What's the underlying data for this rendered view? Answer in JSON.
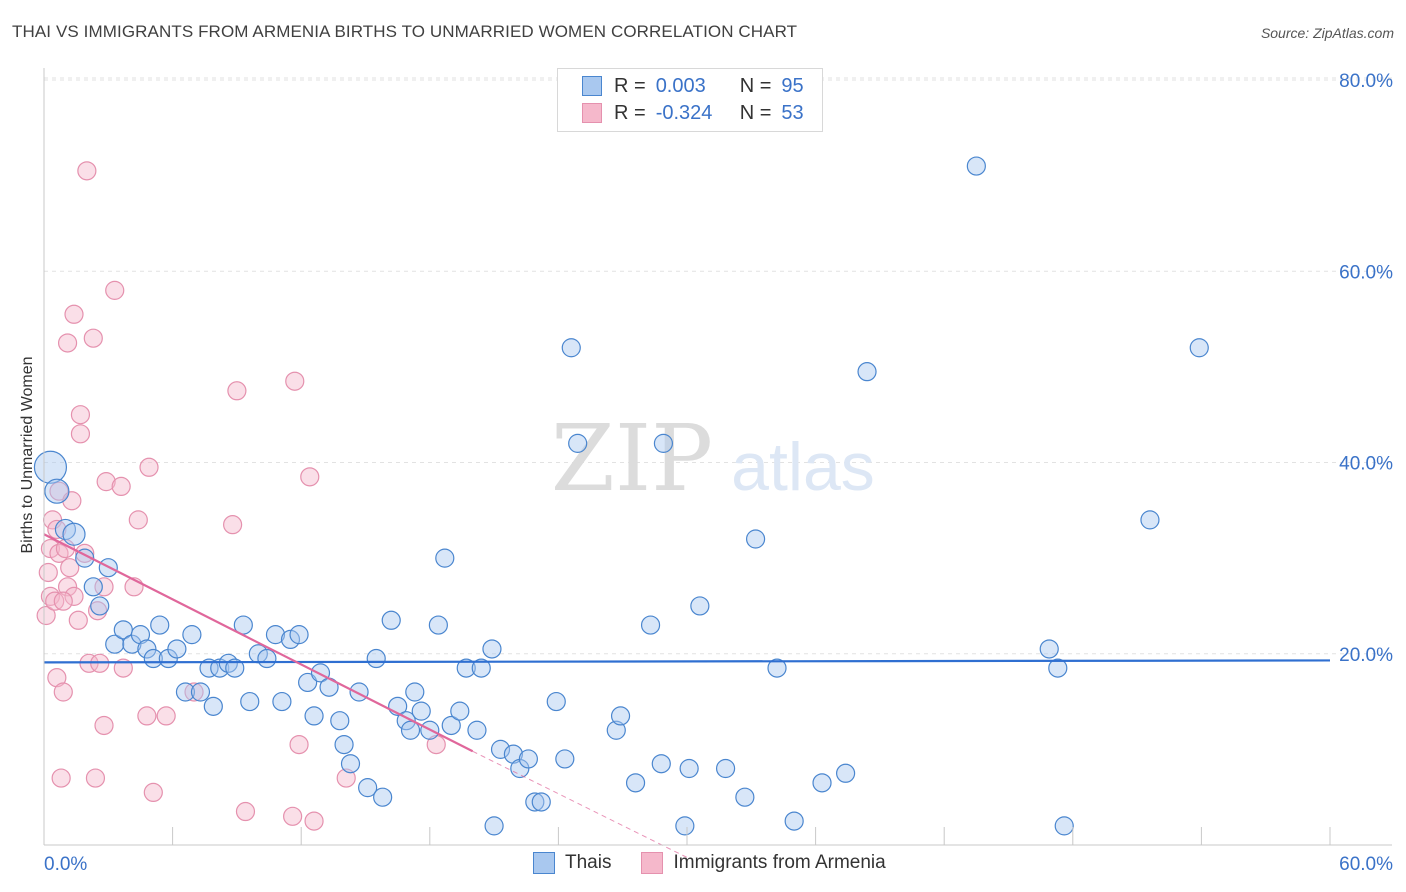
{
  "header": {
    "title": "THAI VS IMMIGRANTS FROM ARMENIA BIRTHS TO UNMARRIED WOMEN CORRELATION CHART",
    "source": "Source: ZipAtlas.com"
  },
  "watermark": {
    "zip": "ZIP",
    "atlas": "atlas"
  },
  "legend": {
    "r_label": "R =",
    "n_label": "N =",
    "series": [
      {
        "r": "0.003",
        "n": "95"
      },
      {
        "r": "-0.324",
        "n": "53"
      }
    ]
  },
  "colors": {
    "thais_fill": "#a9c8ef",
    "thais_stroke": "#4a86cf",
    "thais_line": "#2f6fd1",
    "armenia_fill": "#f5b8cb",
    "armenia_stroke": "#e591ae",
    "armenia_line": "#e0679b",
    "axis_label": "#3a72c8"
  },
  "chart_data": {
    "type": "scatter",
    "title": "THAI VS IMMIGRANTS FROM ARMENIA BIRTHS TO UNMARRIED WOMEN CORRELATION CHART",
    "xlabel": "",
    "ylabel": "Births to Unmarried Women",
    "xlim": [
      0,
      60
    ],
    "ylim": [
      0,
      80
    ],
    "x_tick_labels": [
      "0.0%",
      "60.0%"
    ],
    "y_ticks": [
      20,
      40,
      60,
      80
    ],
    "y_tick_labels": [
      "20.0%",
      "40.0%",
      "60.0%",
      "80.0%"
    ],
    "grid": true,
    "series": [
      {
        "name": "Thais",
        "r": 0.003,
        "n": 95,
        "trend": {
          "x0": 0,
          "y0": 19.1,
          "x1": 60,
          "y1": 19.3
        },
        "points": [
          [
            0.3,
            39.5,
            16
          ],
          [
            0.6,
            37,
            12
          ],
          [
            1.0,
            33,
            10
          ],
          [
            1.4,
            32.5,
            11
          ],
          [
            1.9,
            30,
            9
          ],
          [
            2.3,
            27,
            9
          ],
          [
            2.6,
            25,
            9
          ],
          [
            3.0,
            29,
            9
          ],
          [
            3.3,
            21,
            9
          ],
          [
            3.7,
            22.5,
            9
          ],
          [
            4.1,
            21,
            9
          ],
          [
            4.5,
            22,
            9
          ],
          [
            4.8,
            20.5,
            9
          ],
          [
            5.1,
            19.5,
            9
          ],
          [
            5.4,
            23,
            9
          ],
          [
            5.8,
            19.5,
            9
          ],
          [
            6.2,
            20.5,
            9
          ],
          [
            6.6,
            16,
            9
          ],
          [
            6.9,
            22,
            9
          ],
          [
            7.3,
            16,
            9
          ],
          [
            7.7,
            18.5,
            9
          ],
          [
            7.9,
            14.5,
            9
          ],
          [
            8.2,
            18.5,
            9
          ],
          [
            8.6,
            19,
            9
          ],
          [
            8.9,
            18.5,
            9
          ],
          [
            9.3,
            23,
            9
          ],
          [
            9.6,
            15,
            9
          ],
          [
            10.0,
            20,
            9
          ],
          [
            10.4,
            19.5,
            9
          ],
          [
            10.8,
            22,
            9
          ],
          [
            11.1,
            15,
            9
          ],
          [
            11.5,
            21.5,
            9
          ],
          [
            11.9,
            22,
            9
          ],
          [
            12.3,
            17,
            9
          ],
          [
            12.6,
            13.5,
            9
          ],
          [
            12.9,
            18,
            9
          ],
          [
            13.3,
            16.5,
            9
          ],
          [
            13.8,
            13,
            9
          ],
          [
            14.0,
            10.5,
            9
          ],
          [
            14.3,
            8.5,
            9
          ],
          [
            14.7,
            16,
            9
          ],
          [
            15.1,
            6,
            9
          ],
          [
            15.5,
            19.5,
            9
          ],
          [
            15.8,
            5,
            9
          ],
          [
            16.2,
            23.5,
            9
          ],
          [
            16.5,
            14.5,
            9
          ],
          [
            16.9,
            13,
            9
          ],
          [
            17.1,
            12,
            9
          ],
          [
            17.3,
            16,
            9
          ],
          [
            17.6,
            14,
            9
          ],
          [
            18.0,
            12,
            9
          ],
          [
            18.4,
            23,
            9
          ],
          [
            18.7,
            30,
            9
          ],
          [
            19.0,
            12.5,
            9
          ],
          [
            19.4,
            14,
            9
          ],
          [
            19.7,
            18.5,
            9
          ],
          [
            20.2,
            12,
            9
          ],
          [
            20.4,
            18.5,
            9
          ],
          [
            20.9,
            20.5,
            9
          ],
          [
            21.3,
            10,
            9
          ],
          [
            21.9,
            9.5,
            9
          ],
          [
            22.2,
            8,
            9
          ],
          [
            22.6,
            9,
            9
          ],
          [
            22.9,
            4.5,
            9
          ],
          [
            23.2,
            4.5,
            9
          ],
          [
            23.9,
            15,
            9
          ],
          [
            24.3,
            9,
            9
          ],
          [
            21.0,
            2,
            9
          ],
          [
            24.6,
            52,
            9
          ],
          [
            24.9,
            42,
            9
          ],
          [
            26.7,
            12,
            9
          ],
          [
            26.9,
            13.5,
            9
          ],
          [
            27.6,
            6.5,
            9
          ],
          [
            28.3,
            23,
            9
          ],
          [
            28.8,
            8.5,
            9
          ],
          [
            28.9,
            42,
            9
          ],
          [
            29.9,
            2,
            9
          ],
          [
            30.1,
            8,
            9
          ],
          [
            30.6,
            25,
            9
          ],
          [
            31.8,
            8,
            9
          ],
          [
            32.7,
            5,
            9
          ],
          [
            33.2,
            32,
            9
          ],
          [
            34.2,
            18.5,
            9
          ],
          [
            35.0,
            2.5,
            9
          ],
          [
            36.3,
            6.5,
            9
          ],
          [
            37.4,
            7.5,
            9
          ],
          [
            38.4,
            49.5,
            9
          ],
          [
            43.5,
            71,
            9
          ],
          [
            46.9,
            20.5,
            9
          ],
          [
            47.3,
            18.5,
            9
          ],
          [
            47.6,
            2,
            9
          ],
          [
            51.6,
            34,
            9
          ],
          [
            53.9,
            52,
            9
          ]
        ]
      },
      {
        "name": "Immigrants from Armenia",
        "r": -0.324,
        "n": 53,
        "trend": {
          "x0": 0,
          "y0": 32.5,
          "x1": 20,
          "y1": 9.8,
          "dash_to_x": 30,
          "dash_to_y": -1.3
        },
        "points": [
          [
            0.1,
            24,
            9
          ],
          [
            0.2,
            28.5,
            9
          ],
          [
            0.3,
            31,
            9
          ],
          [
            0.3,
            26,
            9
          ],
          [
            0.4,
            34,
            9
          ],
          [
            0.5,
            25.5,
            9
          ],
          [
            0.6,
            33,
            9
          ],
          [
            0.7,
            37,
            9
          ],
          [
            0.7,
            30.5,
            9
          ],
          [
            0.6,
            17.5,
            9
          ],
          [
            0.8,
            7,
            9
          ],
          [
            0.9,
            16,
            9
          ],
          [
            1.0,
            31,
            9
          ],
          [
            1.1,
            27,
            9
          ],
          [
            1.1,
            52.5,
            9
          ],
          [
            1.2,
            29,
            9
          ],
          [
            1.3,
            36,
            9
          ],
          [
            1.4,
            26,
            9
          ],
          [
            1.4,
            55.5,
            9
          ],
          [
            1.6,
            23.5,
            9
          ],
          [
            1.7,
            45,
            9
          ],
          [
            1.7,
            43,
            9
          ],
          [
            1.9,
            30.5,
            9
          ],
          [
            2.0,
            70.5,
            9
          ],
          [
            2.1,
            19,
            9
          ],
          [
            2.3,
            53,
            9
          ],
          [
            2.4,
            7,
            9
          ],
          [
            2.5,
            24.5,
            9
          ],
          [
            2.6,
            19,
            9
          ],
          [
            2.8,
            12.5,
            9
          ],
          [
            2.8,
            27,
            9
          ],
          [
            2.9,
            38,
            9
          ],
          [
            3.3,
            58,
            9
          ],
          [
            3.6,
            37.5,
            9
          ],
          [
            3.7,
            18.5,
            9
          ],
          [
            4.2,
            27,
            9
          ],
          [
            4.4,
            34,
            9
          ],
          [
            4.8,
            13.5,
            9
          ],
          [
            4.9,
            39.5,
            9
          ],
          [
            5.1,
            5.5,
            9
          ],
          [
            5.7,
            13.5,
            9
          ],
          [
            7.0,
            16,
            9
          ],
          [
            8.8,
            33.5,
            9
          ],
          [
            9.0,
            47.5,
            9
          ],
          [
            9.4,
            3.5,
            9
          ],
          [
            11.6,
            3,
            9
          ],
          [
            11.7,
            48.5,
            9
          ],
          [
            11.9,
            10.5,
            9
          ],
          [
            12.4,
            38.5,
            9
          ],
          [
            12.6,
            2.5,
            9
          ],
          [
            14.1,
            7,
            9
          ],
          [
            18.3,
            10.5,
            9
          ],
          [
            0.9,
            25.5,
            9
          ]
        ]
      }
    ]
  },
  "bottom_legend": [
    "Thais",
    "Immigrants from Armenia"
  ]
}
